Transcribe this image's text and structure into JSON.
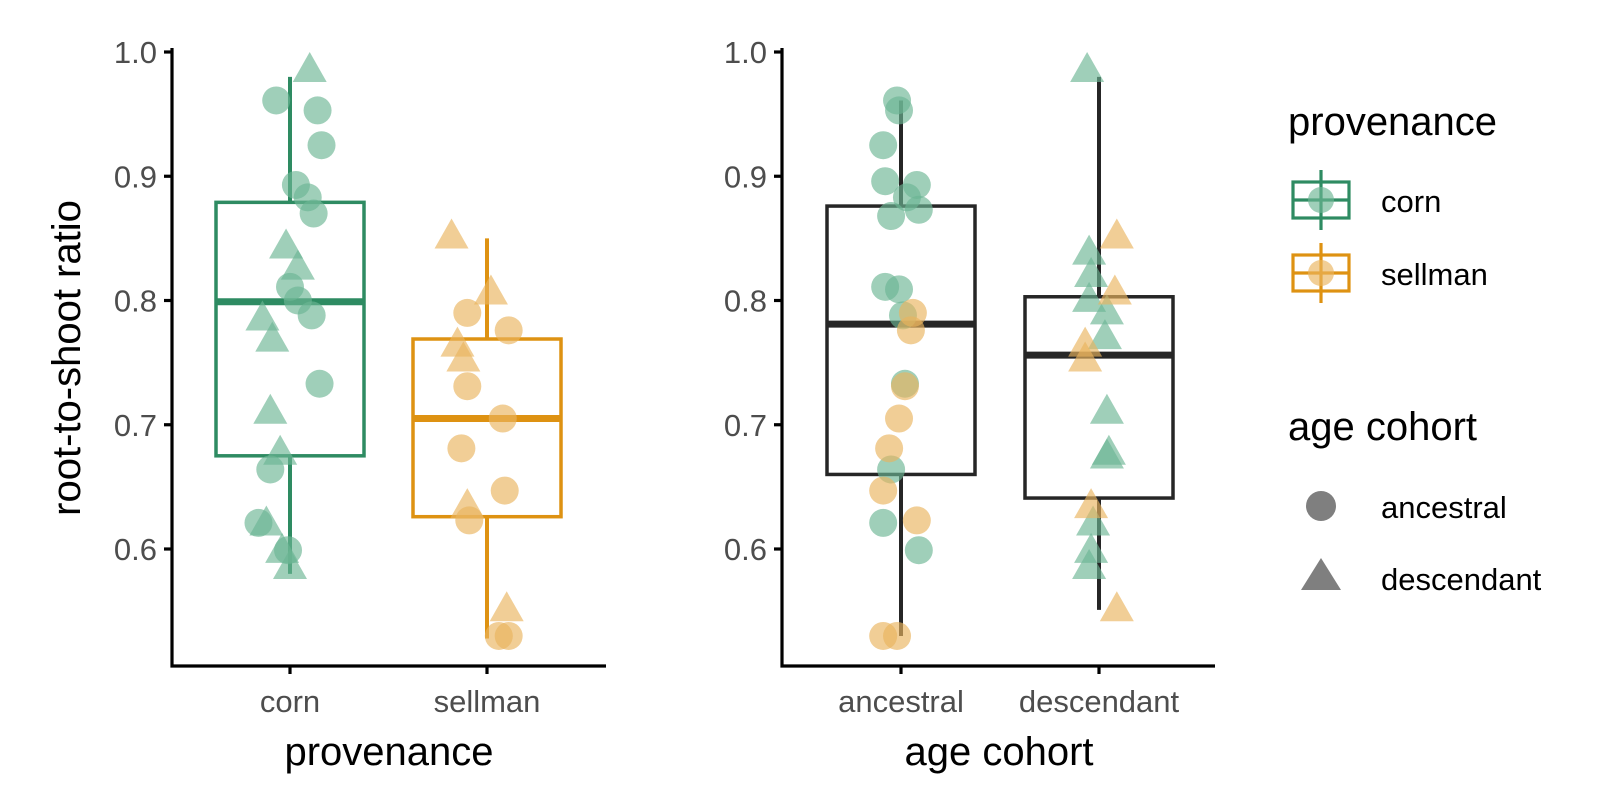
{
  "chart_data": [
    {
      "type": "box",
      "panel": "left",
      "xlabel": "provenance",
      "ylabel": "root-to-shoot ratio",
      "ylim": [
        0.505,
        1.0
      ],
      "yticks": [
        0.6,
        0.7,
        0.8,
        0.9,
        1.0
      ],
      "ytick_labels": [
        "0.6",
        "0.7",
        "0.8",
        "0.9",
        "1.0"
      ],
      "categories": [
        "corn",
        "sellman"
      ],
      "boxes": [
        {
          "category": "corn",
          "color": "#2e8b62",
          "q1": 0.675,
          "median": 0.799,
          "q3": 0.879,
          "whisker_low": 0.58,
          "whisker_high": 0.98
        },
        {
          "category": "sellman",
          "color": "#de9212",
          "q1": 0.626,
          "median": 0.705,
          "q3": 0.769,
          "whisker_low": 0.528,
          "whisker_high": 0.85
        }
      ],
      "points": [
        {
          "x": "corn",
          "jitter": -0.07,
          "y": 0.961,
          "shape": "circle",
          "provenance": "corn"
        },
        {
          "x": "corn",
          "jitter": 0.14,
          "y": 0.953,
          "shape": "circle",
          "provenance": "corn"
        },
        {
          "x": "corn",
          "jitter": 0.16,
          "y": 0.925,
          "shape": "circle",
          "provenance": "corn"
        },
        {
          "x": "corn",
          "jitter": 0.03,
          "y": 0.893,
          "shape": "circle",
          "provenance": "corn"
        },
        {
          "x": "corn",
          "jitter": 0.09,
          "y": 0.883,
          "shape": "circle",
          "provenance": "corn"
        },
        {
          "x": "corn",
          "jitter": 0.12,
          "y": 0.87,
          "shape": "circle",
          "provenance": "corn"
        },
        {
          "x": "corn",
          "jitter": 0.0,
          "y": 0.811,
          "shape": "circle",
          "provenance": "corn"
        },
        {
          "x": "corn",
          "jitter": 0.04,
          "y": 0.8,
          "shape": "circle",
          "provenance": "corn"
        },
        {
          "x": "corn",
          "jitter": 0.11,
          "y": 0.788,
          "shape": "circle",
          "provenance": "corn"
        },
        {
          "x": "corn",
          "jitter": 0.15,
          "y": 0.733,
          "shape": "circle",
          "provenance": "corn"
        },
        {
          "x": "corn",
          "jitter": -0.1,
          "y": 0.664,
          "shape": "circle",
          "provenance": "corn"
        },
        {
          "x": "corn",
          "jitter": -0.16,
          "y": 0.621,
          "shape": "circle",
          "provenance": "corn"
        },
        {
          "x": "corn",
          "jitter": -0.01,
          "y": 0.599,
          "shape": "circle",
          "provenance": "corn"
        },
        {
          "x": "corn",
          "jitter": 0.1,
          "y": 0.985,
          "shape": "triangle",
          "provenance": "corn"
        },
        {
          "x": "corn",
          "jitter": -0.02,
          "y": 0.843,
          "shape": "triangle",
          "provenance": "corn"
        },
        {
          "x": "corn",
          "jitter": 0.04,
          "y": 0.826,
          "shape": "triangle",
          "provenance": "corn"
        },
        {
          "x": "corn",
          "jitter": -0.14,
          "y": 0.785,
          "shape": "triangle",
          "provenance": "corn"
        },
        {
          "x": "corn",
          "jitter": -0.09,
          "y": 0.768,
          "shape": "triangle",
          "provenance": "corn"
        },
        {
          "x": "corn",
          "jitter": -0.1,
          "y": 0.71,
          "shape": "triangle",
          "provenance": "corn"
        },
        {
          "x": "corn",
          "jitter": -0.05,
          "y": 0.677,
          "shape": "triangle",
          "provenance": "corn"
        },
        {
          "x": "corn",
          "jitter": -0.12,
          "y": 0.62,
          "shape": "triangle",
          "provenance": "corn"
        },
        {
          "x": "corn",
          "jitter": -0.04,
          "y": 0.598,
          "shape": "triangle",
          "provenance": "corn"
        },
        {
          "x": "corn",
          "jitter": 0.0,
          "y": 0.585,
          "shape": "triangle",
          "provenance": "corn"
        },
        {
          "x": "sellman",
          "jitter": -0.1,
          "y": 0.79,
          "shape": "circle",
          "provenance": "sellman"
        },
        {
          "x": "sellman",
          "jitter": 0.11,
          "y": 0.776,
          "shape": "circle",
          "provenance": "sellman"
        },
        {
          "x": "sellman",
          "jitter": -0.1,
          "y": 0.731,
          "shape": "circle",
          "provenance": "sellman"
        },
        {
          "x": "sellman",
          "jitter": 0.08,
          "y": 0.705,
          "shape": "circle",
          "provenance": "sellman"
        },
        {
          "x": "sellman",
          "jitter": -0.13,
          "y": 0.681,
          "shape": "circle",
          "provenance": "sellman"
        },
        {
          "x": "sellman",
          "jitter": 0.09,
          "y": 0.647,
          "shape": "circle",
          "provenance": "sellman"
        },
        {
          "x": "sellman",
          "jitter": -0.09,
          "y": 0.623,
          "shape": "circle",
          "provenance": "sellman"
        },
        {
          "x": "sellman",
          "jitter": 0.11,
          "y": 0.53,
          "shape": "circle",
          "provenance": "sellman"
        },
        {
          "x": "sellman",
          "jitter": 0.06,
          "y": 0.53,
          "shape": "circle",
          "provenance": "sellman"
        },
        {
          "x": "sellman",
          "jitter": -0.18,
          "y": 0.851,
          "shape": "triangle",
          "provenance": "sellman"
        },
        {
          "x": "sellman",
          "jitter": 0.02,
          "y": 0.806,
          "shape": "triangle",
          "provenance": "sellman"
        },
        {
          "x": "sellman",
          "jitter": -0.15,
          "y": 0.764,
          "shape": "triangle",
          "provenance": "sellman"
        },
        {
          "x": "sellman",
          "jitter": -0.12,
          "y": 0.752,
          "shape": "triangle",
          "provenance": "sellman"
        },
        {
          "x": "sellman",
          "jitter": -0.1,
          "y": 0.634,
          "shape": "triangle",
          "provenance": "sellman"
        },
        {
          "x": "sellman",
          "jitter": 0.1,
          "y": 0.551,
          "shape": "triangle",
          "provenance": "sellman"
        }
      ]
    },
    {
      "type": "box",
      "panel": "right",
      "xlabel": "age cohort",
      "ylabel": "",
      "ylim": [
        0.505,
        1.0
      ],
      "yticks": [
        0.6,
        0.7,
        0.8,
        0.9,
        1.0
      ],
      "ytick_labels": [
        "0.6",
        "0.7",
        "0.8",
        "0.9",
        "1.0"
      ],
      "categories": [
        "ancestral",
        "descendant"
      ],
      "boxes": [
        {
          "category": "ancestral",
          "color": "#262626",
          "q1": 0.66,
          "median": 0.781,
          "q3": 0.876,
          "whisker_low": 0.53,
          "whisker_high": 0.961
        },
        {
          "category": "descendant",
          "color": "#262626",
          "q1": 0.641,
          "median": 0.756,
          "q3": 0.803,
          "whisker_low": 0.551,
          "whisker_high": 0.98
        }
      ],
      "points": [
        {
          "x": "ancestral",
          "jitter": -0.02,
          "y": 0.961,
          "shape": "circle",
          "provenance": "corn"
        },
        {
          "x": "ancestral",
          "jitter": -0.01,
          "y": 0.953,
          "shape": "circle",
          "provenance": "corn"
        },
        {
          "x": "ancestral",
          "jitter": -0.09,
          "y": 0.925,
          "shape": "circle",
          "provenance": "corn"
        },
        {
          "x": "ancestral",
          "jitter": -0.08,
          "y": 0.896,
          "shape": "circle",
          "provenance": "corn"
        },
        {
          "x": "ancestral",
          "jitter": 0.08,
          "y": 0.893,
          "shape": "circle",
          "provenance": "corn"
        },
        {
          "x": "ancestral",
          "jitter": 0.03,
          "y": 0.883,
          "shape": "circle",
          "provenance": "corn"
        },
        {
          "x": "ancestral",
          "jitter": 0.09,
          "y": 0.873,
          "shape": "circle",
          "provenance": "corn"
        },
        {
          "x": "ancestral",
          "jitter": -0.05,
          "y": 0.868,
          "shape": "circle",
          "provenance": "corn"
        },
        {
          "x": "ancestral",
          "jitter": -0.08,
          "y": 0.811,
          "shape": "circle",
          "provenance": "corn"
        },
        {
          "x": "ancestral",
          "jitter": -0.01,
          "y": 0.809,
          "shape": "circle",
          "provenance": "corn"
        },
        {
          "x": "ancestral",
          "jitter": 0.01,
          "y": 0.788,
          "shape": "circle",
          "provenance": "corn"
        },
        {
          "x": "ancestral",
          "jitter": 0.02,
          "y": 0.733,
          "shape": "circle",
          "provenance": "corn"
        },
        {
          "x": "ancestral",
          "jitter": -0.05,
          "y": 0.664,
          "shape": "circle",
          "provenance": "corn"
        },
        {
          "x": "ancestral",
          "jitter": -0.09,
          "y": 0.621,
          "shape": "circle",
          "provenance": "corn"
        },
        {
          "x": "ancestral",
          "jitter": 0.09,
          "y": 0.599,
          "shape": "circle",
          "provenance": "corn"
        },
        {
          "x": "ancestral",
          "jitter": 0.06,
          "y": 0.79,
          "shape": "circle",
          "provenance": "sellman"
        },
        {
          "x": "ancestral",
          "jitter": 0.05,
          "y": 0.776,
          "shape": "circle",
          "provenance": "sellman"
        },
        {
          "x": "ancestral",
          "jitter": 0.02,
          "y": 0.731,
          "shape": "circle",
          "provenance": "sellman"
        },
        {
          "x": "ancestral",
          "jitter": -0.01,
          "y": 0.705,
          "shape": "circle",
          "provenance": "sellman"
        },
        {
          "x": "ancestral",
          "jitter": -0.06,
          "y": 0.681,
          "shape": "circle",
          "provenance": "sellman"
        },
        {
          "x": "ancestral",
          "jitter": -0.09,
          "y": 0.647,
          "shape": "circle",
          "provenance": "sellman"
        },
        {
          "x": "ancestral",
          "jitter": 0.08,
          "y": 0.623,
          "shape": "circle",
          "provenance": "sellman"
        },
        {
          "x": "ancestral",
          "jitter": -0.09,
          "y": 0.53,
          "shape": "circle",
          "provenance": "sellman"
        },
        {
          "x": "ancestral",
          "jitter": -0.02,
          "y": 0.53,
          "shape": "circle",
          "provenance": "sellman"
        },
        {
          "x": "descendant",
          "jitter": -0.06,
          "y": 0.985,
          "shape": "triangle",
          "provenance": "corn"
        },
        {
          "x": "descendant",
          "jitter": -0.05,
          "y": 0.838,
          "shape": "triangle",
          "provenance": "corn"
        },
        {
          "x": "descendant",
          "jitter": -0.04,
          "y": 0.82,
          "shape": "triangle",
          "provenance": "corn"
        },
        {
          "x": "descendant",
          "jitter": -0.05,
          "y": 0.8,
          "shape": "triangle",
          "provenance": "corn"
        },
        {
          "x": "descendant",
          "jitter": 0.04,
          "y": 0.79,
          "shape": "triangle",
          "provenance": "corn"
        },
        {
          "x": "descendant",
          "jitter": 0.03,
          "y": 0.77,
          "shape": "triangle",
          "provenance": "corn"
        },
        {
          "x": "descendant",
          "jitter": 0.04,
          "y": 0.71,
          "shape": "triangle",
          "provenance": "corn"
        },
        {
          "x": "descendant",
          "jitter": 0.05,
          "y": 0.677,
          "shape": "triangle",
          "provenance": "corn"
        },
        {
          "x": "descendant",
          "jitter": 0.04,
          "y": 0.674,
          "shape": "triangle",
          "provenance": "corn"
        },
        {
          "x": "descendant",
          "jitter": -0.03,
          "y": 0.62,
          "shape": "triangle",
          "provenance": "corn"
        },
        {
          "x": "descendant",
          "jitter": -0.04,
          "y": 0.598,
          "shape": "triangle",
          "provenance": "corn"
        },
        {
          "x": "descendant",
          "jitter": -0.05,
          "y": 0.585,
          "shape": "triangle",
          "provenance": "corn"
        },
        {
          "x": "descendant",
          "jitter": 0.09,
          "y": 0.851,
          "shape": "triangle",
          "provenance": "sellman"
        },
        {
          "x": "descendant",
          "jitter": 0.08,
          "y": 0.806,
          "shape": "triangle",
          "provenance": "sellman"
        },
        {
          "x": "descendant",
          "jitter": -0.07,
          "y": 0.764,
          "shape": "triangle",
          "provenance": "sellman"
        },
        {
          "x": "descendant",
          "jitter": -0.07,
          "y": 0.752,
          "shape": "triangle",
          "provenance": "sellman"
        },
        {
          "x": "descendant",
          "jitter": -0.04,
          "y": 0.634,
          "shape": "triangle",
          "provenance": "sellman"
        },
        {
          "x": "descendant",
          "jitter": 0.09,
          "y": 0.551,
          "shape": "triangle",
          "provenance": "sellman"
        }
      ]
    }
  ],
  "legend": {
    "placement": "right",
    "provenance": {
      "title": "provenance",
      "items": [
        {
          "label": "corn",
          "color": "#2e8b62"
        },
        {
          "label": "sellman",
          "color": "#de9212"
        }
      ]
    },
    "age_cohort": {
      "title": "age cohort",
      "items": [
        {
          "label": "ancestral",
          "shape": "circle",
          "color": "#7f7f7f"
        },
        {
          "label": "descendant",
          "shape": "triangle",
          "color": "#7f7f7f"
        }
      ]
    }
  },
  "colors": {
    "corn": "#2e8b62",
    "corn_point": "#6bb594",
    "sellman": "#de9212",
    "sellman_point": "#eab35d",
    "neutral_box": "#262626",
    "text": "#4d4d4d",
    "axis": "#000000"
  },
  "point_opacity": 0.65
}
